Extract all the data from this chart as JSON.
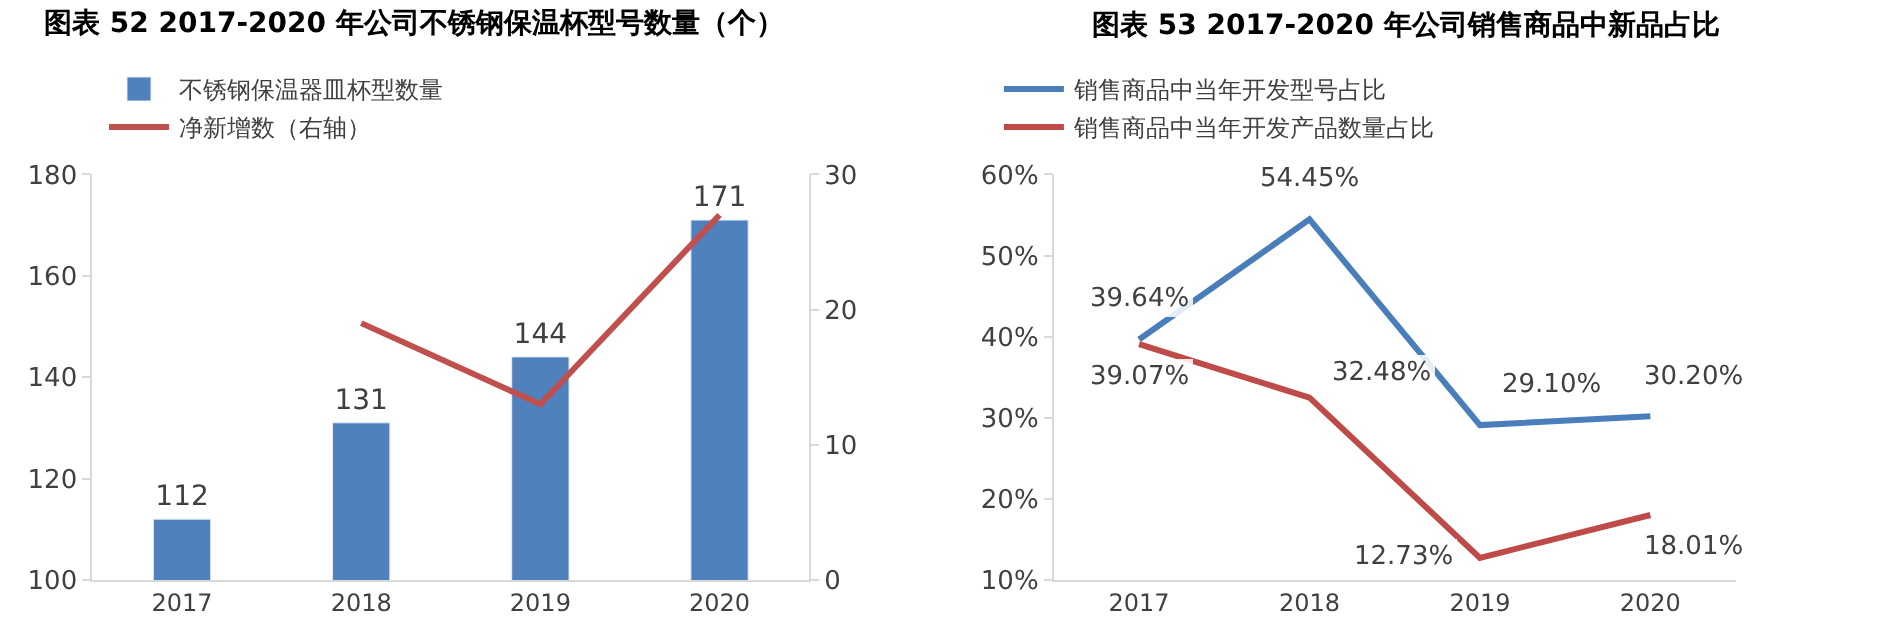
{
  "chart_data": [
    {
      "type": "bar",
      "title": "图表 52 2017-2020 年公司不锈钢保温杯型号数量（个）",
      "categories": [
        "2017",
        "2018",
        "2019",
        "2020"
      ],
      "series": [
        {
          "name": "不锈钢保温器皿杯型数量",
          "type": "bar",
          "color": "#4f81bd",
          "values": [
            112,
            131,
            144,
            171
          ],
          "value_labels": [
            "112",
            "131",
            "144",
            "171"
          ]
        },
        {
          "name": "净新增数（右轴）",
          "type": "line",
          "axis": "y2",
          "color": "#c0504d",
          "values": [
            null,
            19,
            13,
            27
          ]
        }
      ],
      "ylim": [
        100,
        180
      ],
      "yticks": [
        100,
        120,
        140,
        160,
        180
      ],
      "y2lim": [
        0,
        30
      ],
      "y2ticks": [
        0,
        10,
        20,
        30
      ],
      "legend": "top",
      "grid": false
    },
    {
      "type": "line",
      "title": "图表 53 2017-2020 年公司销售商品中新品占比",
      "categories": [
        "2017",
        "2018",
        "2019",
        "2020"
      ],
      "series": [
        {
          "name": "销售商品中当年开发型号占比",
          "color": "#4a7ebb",
          "values": [
            39.64,
            54.45,
            29.1,
            30.2
          ],
          "value_labels": [
            "39.64%",
            "54.45%",
            "29.10%",
            "30.20%"
          ]
        },
        {
          "name": "销售商品中当年开发产品数量占比",
          "color": "#be4b48",
          "values": [
            39.07,
            32.48,
            12.73,
            18.01
          ],
          "value_labels": [
            "39.07%",
            "32.48%",
            "12.73%",
            "18.01%"
          ]
        }
      ],
      "ylim": [
        10,
        60
      ],
      "yticks": [
        {
          "value": 10,
          "label": "10%"
        },
        {
          "value": 20,
          "label": "20%"
        },
        {
          "value": 30,
          "label": "30%"
        },
        {
          "value": 40,
          "label": "40%"
        },
        {
          "value": 50,
          "label": "50%"
        },
        {
          "value": 60,
          "label": "60%"
        }
      ],
      "legend": "top",
      "grid": false,
      "marker": "none"
    }
  ]
}
